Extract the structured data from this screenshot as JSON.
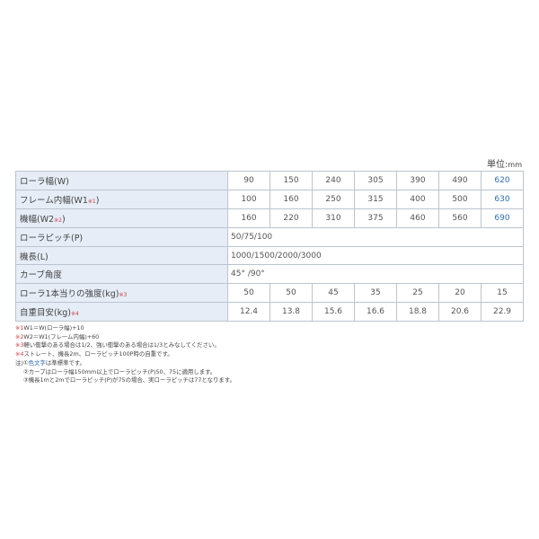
{
  "unit": {
    "label": "単位:",
    "value": "mm"
  },
  "rows": [
    {
      "label": "ローラ幅(W)",
      "mark": "",
      "values": [
        "90",
        "150",
        "240",
        "305",
        "390",
        "490",
        "620"
      ]
    },
    {
      "label": "フレーム内幅(W1",
      "mark": "※1",
      "suffix": ")",
      "values": [
        "100",
        "160",
        "250",
        "315",
        "400",
        "500",
        "630"
      ]
    },
    {
      "label": "機幅(W2",
      "mark": "※2",
      "suffix": ")",
      "values": [
        "160",
        "220",
        "310",
        "375",
        "460",
        "560",
        "690"
      ]
    },
    {
      "label": "ローラピッチ(P)",
      "span": "50/75/100"
    },
    {
      "label": "機長(L)",
      "span": "1000/1500/2000/3000"
    },
    {
      "label": "カーブ角度",
      "span": "45° /90°"
    },
    {
      "label": "ローラ1本当りの強度(kg)",
      "mark": "※3",
      "values": [
        "50",
        "50",
        "45",
        "35",
        "25",
        "20",
        "15"
      ]
    },
    {
      "label": "自重目安(kg)",
      "mark": "※4",
      "values": [
        "12.4",
        "13.8",
        "15.6",
        "16.6",
        "18.8",
        "20.6",
        "22.9"
      ]
    }
  ],
  "highlight_color": "#2e6fb5",
  "notes": {
    "n1": {
      "mark": "※1",
      "text": "W1＝W(ローラ幅)+10"
    },
    "n2": {
      "mark": "※2",
      "text": "W2＝W1(フレーム内幅)+60"
    },
    "n3": {
      "mark": "※3",
      "text": "軽い衝撃のある場合は1/2、強い衝撃のある場合は1/3とみなしてください。"
    },
    "n4": {
      "mark": "※4",
      "text": "ストレート、機長2m、ローラピッチ100P時の自重です。"
    },
    "c1a": "注)①",
    "c1b": "色文字",
    "c1c": "は準標準です。",
    "c2": "②カーブはローラ幅150mm以上でローラピッチ(P)50、75に適用します。",
    "c3": "③機長1mと2mでローラピッチ(P)が75の場合、実ローラピッチは77となります。"
  }
}
